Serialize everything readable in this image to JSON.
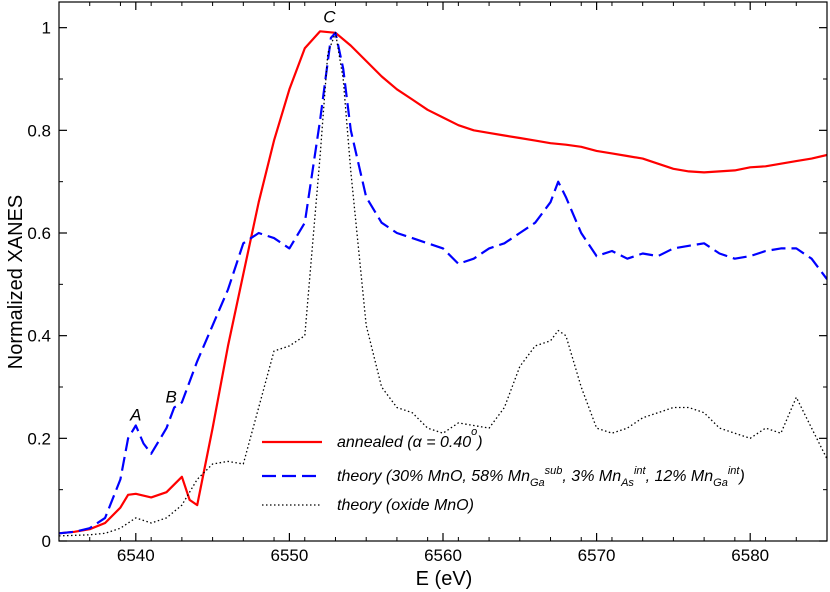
{
  "chart_data": {
    "type": "line",
    "xlabel": "E (eV)",
    "ylabel": "Normalized XANES",
    "xlim": [
      6535,
      6585
    ],
    "ylim": [
      0,
      1.05
    ],
    "xticks": [
      6540,
      6550,
      6560,
      6570,
      6580
    ],
    "yticks": [
      0,
      0.2,
      0.4,
      0.6,
      0.8,
      1
    ],
    "xtick_labels": [
      "6540",
      "6550",
      "6560",
      "6570",
      "6580"
    ],
    "ytick_labels": [
      "0",
      "0.2",
      "0.4",
      "0.6",
      "0.8",
      "1"
    ],
    "grid": false,
    "legend_position": "bottom-center",
    "annotations": [
      {
        "text": "A",
        "x": 6540,
        "y": 0.235
      },
      {
        "text": "B",
        "x": 6542.3,
        "y": 0.27
      },
      {
        "text": "C",
        "x": 6552.6,
        "y": 1.01
      }
    ],
    "legend": [
      {
        "main": "annealed (α = 0.40",
        "sup": "o",
        "tail": ")"
      },
      {
        "parts": [
          {
            "t": "theory (30% MnO, 58% Mn"
          },
          {
            "t": "Ga",
            "sub": true
          },
          {
            "t": "sub",
            "sup": true
          },
          {
            "t": ", 3% Mn"
          },
          {
            "t": "As",
            "sub": true
          },
          {
            "t": "int",
            "sup": true
          },
          {
            "t": ", 12% Mn"
          },
          {
            "t": "Ga",
            "sub": true
          },
          {
            "t": "int",
            "sup": true
          },
          {
            "t": ")"
          }
        ]
      },
      {
        "main": "theory (oxide MnO)"
      }
    ],
    "series": [
      {
        "color": "#ff0000",
        "style": "solid",
        "x": [
          6535,
          6536,
          6537,
          6538,
          6539,
          6539.5,
          6540,
          6541,
          6542,
          6543,
          6543.5,
          6544,
          6545,
          6546,
          6547,
          6548,
          6549,
          6550,
          6551,
          6552,
          6553,
          6554,
          6555,
          6556,
          6557,
          6558,
          6559,
          6560,
          6561,
          6562,
          6563,
          6564,
          6565,
          6566,
          6567,
          6568,
          6569,
          6570,
          6571,
          6572,
          6573,
          6574,
          6575,
          6576,
          6577,
          6578,
          6579,
          6580,
          6581,
          6582,
          6583,
          6584,
          6585
        ],
        "y": [
          0.015,
          0.018,
          0.023,
          0.035,
          0.065,
          0.09,
          0.092,
          0.085,
          0.095,
          0.125,
          0.08,
          0.07,
          0.22,
          0.38,
          0.52,
          0.66,
          0.78,
          0.88,
          0.96,
          0.993,
          0.99,
          0.965,
          0.935,
          0.905,
          0.88,
          0.86,
          0.84,
          0.825,
          0.81,
          0.8,
          0.795,
          0.79,
          0.785,
          0.78,
          0.775,
          0.772,
          0.768,
          0.76,
          0.755,
          0.75,
          0.745,
          0.735,
          0.725,
          0.72,
          0.718,
          0.72,
          0.722,
          0.728,
          0.73,
          0.735,
          0.74,
          0.745,
          0.752
        ]
      },
      {
        "color": "#0000ff",
        "style": "dashed",
        "x": [
          6535,
          6536,
          6537,
          6538,
          6539,
          6539.5,
          6540,
          6540.5,
          6541,
          6542,
          6542.5,
          6543,
          6544,
          6545,
          6546,
          6547,
          6548,
          6549,
          6550,
          6551,
          6552,
          6552.7,
          6553,
          6553.5,
          6554,
          6555,
          6556,
          6557,
          6558,
          6559,
          6560,
          6561,
          6562,
          6563,
          6564,
          6565,
          6566,
          6567,
          6567.5,
          6568,
          6569,
          6570,
          6571,
          6572,
          6573,
          6574,
          6575,
          6576,
          6577,
          6578,
          6579,
          6580,
          6581,
          6582,
          6583,
          6584,
          6585
        ],
        "y": [
          0.015,
          0.018,
          0.025,
          0.045,
          0.12,
          0.2,
          0.225,
          0.19,
          0.17,
          0.22,
          0.26,
          0.27,
          0.35,
          0.42,
          0.49,
          0.58,
          0.6,
          0.59,
          0.57,
          0.62,
          0.82,
          0.98,
          0.99,
          0.92,
          0.8,
          0.67,
          0.62,
          0.6,
          0.59,
          0.58,
          0.57,
          0.54,
          0.55,
          0.57,
          0.58,
          0.6,
          0.62,
          0.66,
          0.7,
          0.67,
          0.6,
          0.555,
          0.565,
          0.55,
          0.56,
          0.555,
          0.57,
          0.575,
          0.58,
          0.56,
          0.55,
          0.555,
          0.565,
          0.57,
          0.57,
          0.55,
          0.51
        ]
      },
      {
        "color": "#000000",
        "style": "dotted",
        "x": [
          6535,
          6537,
          6538,
          6539,
          6540,
          6541,
          6542,
          6543,
          6544,
          6545,
          6546,
          6547,
          6548,
          6549,
          6550,
          6551,
          6552,
          6552.5,
          6553,
          6553.5,
          6554,
          6555,
          6556,
          6557,
          6558,
          6559,
          6560,
          6561,
          6562,
          6563,
          6564,
          6565,
          6566,
          6567,
          6567.5,
          6568,
          6569,
          6570,
          6571,
          6572,
          6573,
          6574,
          6575,
          6576,
          6577,
          6578,
          6579,
          6580,
          6581,
          6582,
          6583,
          6584,
          6585
        ],
        "y": [
          0.01,
          0.012,
          0.015,
          0.025,
          0.045,
          0.035,
          0.045,
          0.07,
          0.12,
          0.15,
          0.155,
          0.15,
          0.26,
          0.37,
          0.38,
          0.4,
          0.75,
          0.95,
          0.99,
          0.9,
          0.72,
          0.42,
          0.3,
          0.26,
          0.25,
          0.22,
          0.21,
          0.23,
          0.225,
          0.22,
          0.26,
          0.34,
          0.38,
          0.39,
          0.41,
          0.4,
          0.3,
          0.22,
          0.21,
          0.22,
          0.24,
          0.25,
          0.26,
          0.26,
          0.25,
          0.22,
          0.21,
          0.2,
          0.22,
          0.21,
          0.28,
          0.22,
          0.16
        ]
      }
    ]
  }
}
